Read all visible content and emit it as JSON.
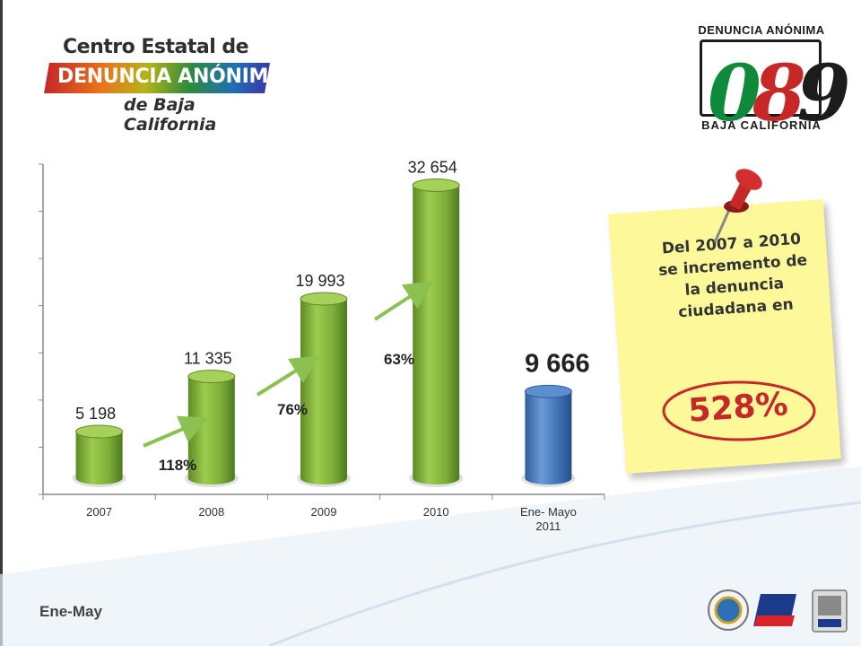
{
  "logo_left": {
    "line1": "Centro Estatal de",
    "line2": "DENUNCIA ANÓNIMA",
    "line3": "de Baja California"
  },
  "logo_right": {
    "top": "DENUNCIA ANÓNIMA",
    "digits": [
      "0",
      "8",
      "9"
    ],
    "bottom": "BAJA CALIFORNIA"
  },
  "chart_data": {
    "type": "bar",
    "categories": [
      "2007",
      "2008",
      "2009",
      "2010",
      "Ene- Mayo 2011"
    ],
    "values": [
      5198,
      11335,
      19993,
      32654,
      9666
    ],
    "value_labels": [
      "5 198",
      "11 335",
      "19 993",
      "32 654",
      "9 666"
    ],
    "colors": [
      "#7fae3a",
      "#7fae3a",
      "#7fae3a",
      "#7fae3a",
      "#3f74b8"
    ],
    "ylim": [
      0,
      35000
    ],
    "growth_labels": [
      "118%",
      "76%",
      "63%"
    ],
    "grid": false
  },
  "note": {
    "text": "Del 2007 a 2010 se incremento de la denuncia ciudadana en",
    "highlight": "528%"
  },
  "footer": {
    "label": "Ene-May"
  }
}
